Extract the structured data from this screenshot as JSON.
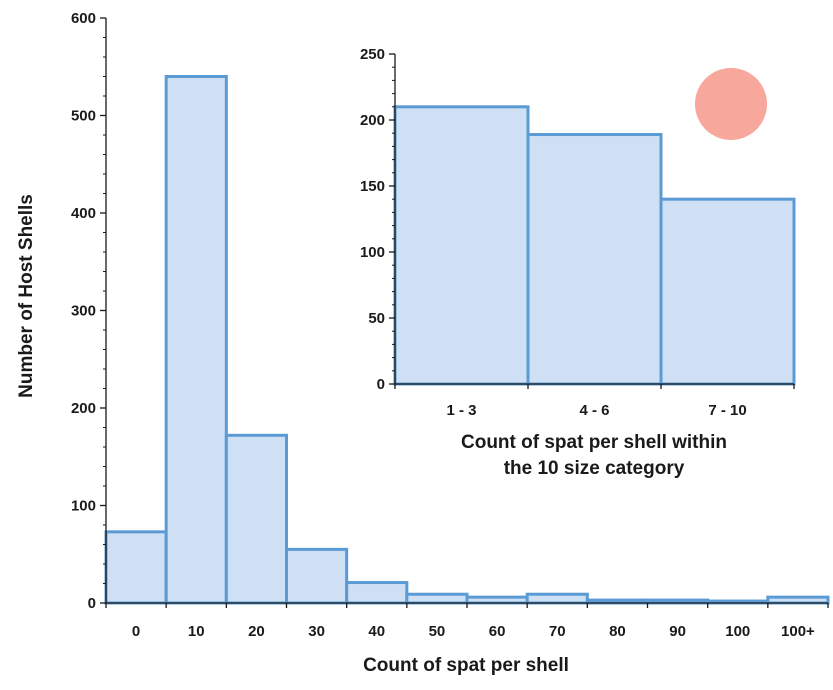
{
  "colors": {
    "bar_fill": "#cfe0f4",
    "bar_stroke": "#5b9bd5",
    "axis": "#1a1a1a",
    "marker": "#f7a79b"
  },
  "chart_data": [
    {
      "type": "bar",
      "title": "",
      "xlabel": "Count of spat per shell",
      "ylabel": "Number of Host Shells",
      "ylim": [
        0,
        600
      ],
      "yticks": [
        0,
        100,
        200,
        300,
        400,
        500,
        600
      ],
      "grid": false,
      "categories": [
        "0",
        "10",
        "20",
        "30",
        "40",
        "50",
        "60",
        "70",
        "80",
        "90",
        "100",
        "100+"
      ],
      "values": [
        73,
        540,
        172,
        55,
        21,
        9,
        6,
        9,
        3,
        3,
        2,
        6
      ]
    },
    {
      "type": "bar",
      "title": "",
      "xlabel_lines": [
        "Count of spat per shell within",
        "the 10 size category"
      ],
      "ylabel": "",
      "ylim": [
        0,
        250
      ],
      "yticks": [
        0,
        50,
        100,
        150,
        200,
        250
      ],
      "grid": false,
      "categories": [
        "1 - 3",
        "4 - 6",
        "7 - 10"
      ],
      "values": [
        210,
        189,
        140
      ],
      "marker": "circle"
    }
  ]
}
